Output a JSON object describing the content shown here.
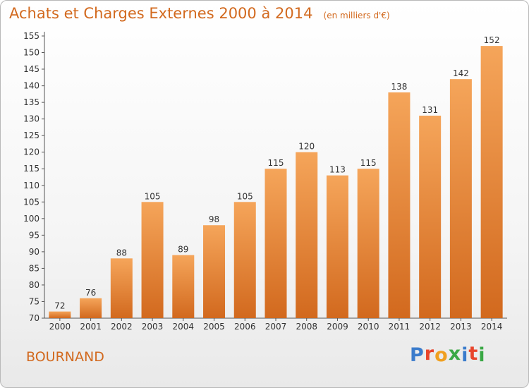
{
  "chart_data": {
    "type": "bar",
    "title": "Achats et Charges Externes 2000 à 2014",
    "subtitle": "(en milliers d'€)",
    "categories": [
      "2000",
      "2001",
      "2002",
      "2003",
      "2004",
      "2005",
      "2006",
      "2007",
      "2008",
      "2009",
      "2010",
      "2011",
      "2012",
      "2013",
      "2014"
    ],
    "values": [
      72,
      76,
      88,
      105,
      89,
      98,
      105,
      115,
      120,
      113,
      115,
      138,
      131,
      142,
      152
    ],
    "ylim": [
      70,
      155
    ],
    "yticks": [
      70,
      75,
      80,
      85,
      90,
      95,
      100,
      105,
      110,
      115,
      120,
      125,
      130,
      135,
      140,
      145,
      150,
      155
    ],
    "grid": false,
    "legend": "none",
    "bar_color_top": "#f5a55a",
    "bar_color_bottom": "#d2691e"
  },
  "footer": {
    "commune": "BOURNAND",
    "logo_text": "Proxiti",
    "logo_colors": [
      "#3b7ccc",
      "#e8452c",
      "#f0a020",
      "#3aa845",
      "#3b7ccc",
      "#e8452c",
      "#3aa845"
    ]
  }
}
